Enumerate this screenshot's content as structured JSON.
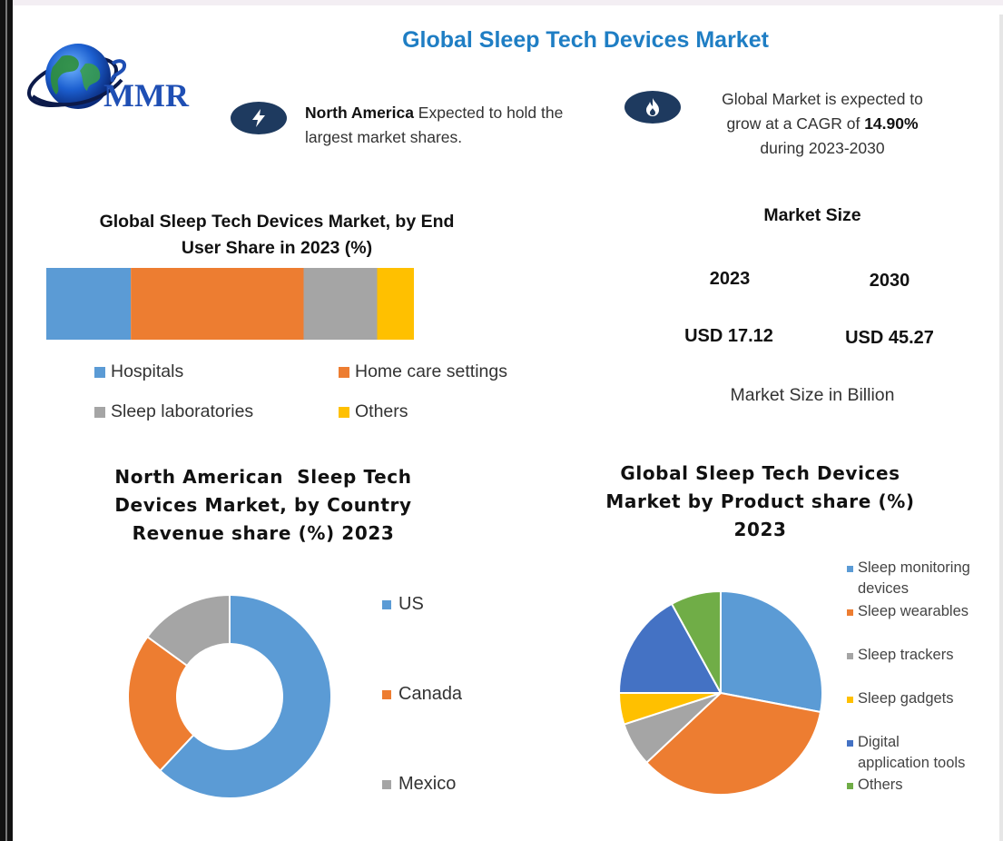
{
  "header": {
    "title": "Global Sleep Tech Devices Market",
    "logo_text": "MMR"
  },
  "info": {
    "left_bold": "North America",
    "left_rest": " Expected to hold the",
    "left_line2": "largest market shares.",
    "right_line1": "Global Market is expected to",
    "right_line2_pre": "grow at a CAGR of ",
    "right_line2_bold": "14.90%",
    "right_line3": "during 2023-2030"
  },
  "market_size": {
    "title": "Market Size",
    "year_a": "2023",
    "year_b": "2030",
    "value_a": "USD 17.12",
    "value_b": "USD 45.27",
    "note": "Market Size in Billion"
  },
  "colors": {
    "blue": "#5b9bd5",
    "orange": "#ed7d31",
    "gray": "#a5a5a5",
    "yellow": "#ffc000",
    "darkblue": "#4472c4",
    "green": "#70ad47",
    "badge": "#1e3a5f",
    "title": "#1f7ec4"
  },
  "icons": {
    "left_badge": "lightning-icon",
    "right_badge": "flame-icon"
  },
  "chart_data": [
    {
      "type": "bar",
      "orientation": "horizontal-stacked",
      "title_line1": "Global Sleep Tech Devices Market, by End",
      "title_line2": "User Share in 2023 (%)",
      "series": [
        {
          "name": "Hospitals",
          "value": 23,
          "color": "#5b9bd5"
        },
        {
          "name": "Home care settings",
          "value": 47,
          "color": "#ed7d31"
        },
        {
          "name": "Sleep laboratories",
          "value": 20,
          "color": "#a5a5a5"
        },
        {
          "name": "Others",
          "value": 10,
          "color": "#ffc000"
        }
      ],
      "legend_placement": "bottom"
    },
    {
      "type": "pie",
      "variant": "donut",
      "title_line1": "North American  Sleep Tech",
      "title_line2": "Devices Market, by Country",
      "title_line3": "Revenue share (%) 2023",
      "categories": [
        "US",
        "Canada",
        "Mexico"
      ],
      "values": [
        62,
        23,
        15
      ],
      "colors": [
        "#5b9bd5",
        "#ed7d31",
        "#a5a5a5"
      ],
      "legend_placement": "right"
    },
    {
      "type": "pie",
      "title_line1": "Global Sleep Tech Devices",
      "title_line2": "Market by Product share (%)",
      "title_line3": "2023",
      "categories": [
        "Sleep monitoring devices",
        "Sleep wearables",
        "Sleep trackers",
        "Sleep gadgets",
        "Digital application tools",
        "Others"
      ],
      "legend_lines": [
        [
          "Sleep monitoring",
          "devices"
        ],
        [
          "Sleep wearables"
        ],
        [
          "Sleep trackers"
        ],
        [
          "Sleep gadgets"
        ],
        [
          "Digital",
          "application tools"
        ],
        [
          "Others"
        ]
      ],
      "values": [
        28,
        35,
        7,
        5,
        17,
        8
      ],
      "colors": [
        "#5b9bd5",
        "#ed7d31",
        "#a5a5a5",
        "#ffc000",
        "#4472c4",
        "#70ad47"
      ],
      "legend_placement": "right"
    }
  ]
}
